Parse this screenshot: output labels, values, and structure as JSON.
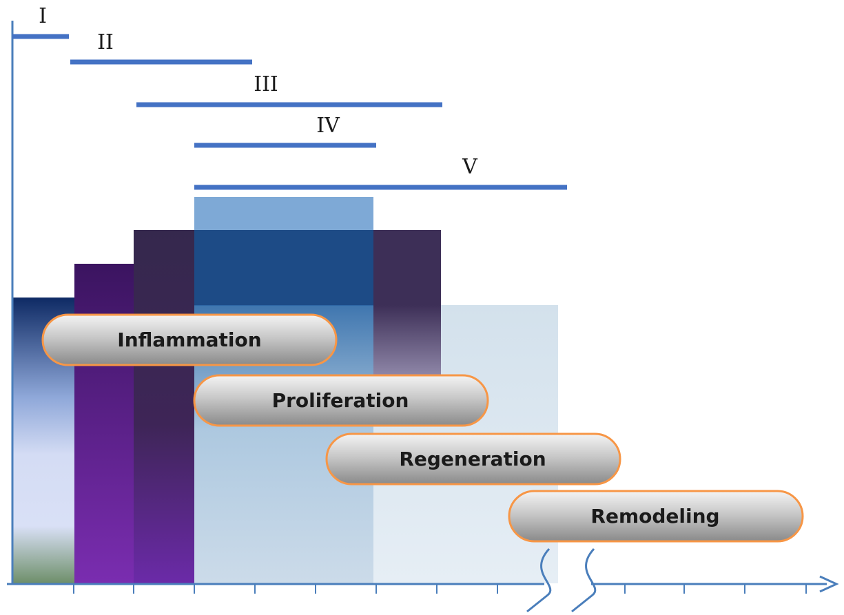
{
  "phases": [
    {
      "label": "I"
    },
    {
      "label": "II"
    },
    {
      "label": "III"
    },
    {
      "label": "IV"
    },
    {
      "label": "V"
    }
  ],
  "stages": [
    {
      "label": "Inflammation"
    },
    {
      "label": "Proliferation"
    },
    {
      "label": "Regeneration"
    },
    {
      "label": "Remodeling"
    }
  ],
  "colors": {
    "axis": "#4a7ebb",
    "phase_bar": "#4472c4",
    "pill_border": "#f79646",
    "pill_fill_light": "#ececec",
    "pill_fill_dark": "#8c8c8c"
  }
}
